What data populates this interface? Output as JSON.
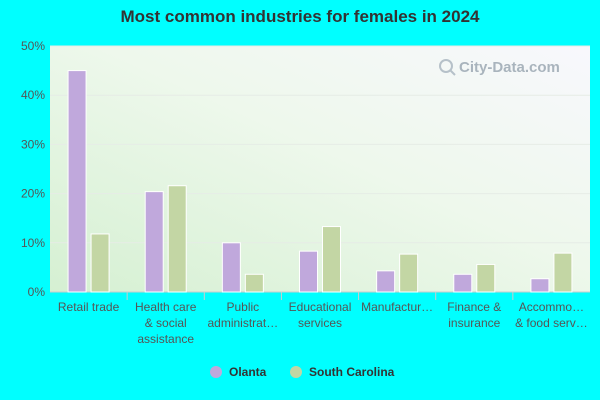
{
  "title": "Most common industries for females in 2024",
  "watermark": "City-Data.com",
  "colors": {
    "Olanta": "#c0a8dc",
    "South Carolina": "#c3d6a4",
    "page_bg": "#00ffff"
  },
  "chart_data": {
    "type": "bar",
    "title": "Most common industries for females in 2024",
    "xlabel": "",
    "ylabel": "",
    "ylim": [
      0,
      50
    ],
    "yticks": [
      "0%",
      "10%",
      "20%",
      "30%",
      "40%",
      "50%"
    ],
    "categories": [
      [
        "Retail trade"
      ],
      [
        "Health care",
        "& social",
        "assistance"
      ],
      [
        "Public",
        "administrat…"
      ],
      [
        "Educational",
        "services"
      ],
      [
        "Manufactur…"
      ],
      [
        "Finance &",
        "insurance"
      ],
      [
        "Accommo…",
        "& food serv…"
      ]
    ],
    "series": [
      {
        "name": "Olanta",
        "values": [
          45.0,
          20.4,
          10.0,
          8.3,
          4.3,
          3.6,
          2.7
        ]
      },
      {
        "name": "South Carolina",
        "values": [
          11.8,
          21.6,
          3.6,
          13.3,
          7.7,
          5.6,
          7.9
        ]
      }
    ],
    "grid": true,
    "legend": "bottom"
  }
}
